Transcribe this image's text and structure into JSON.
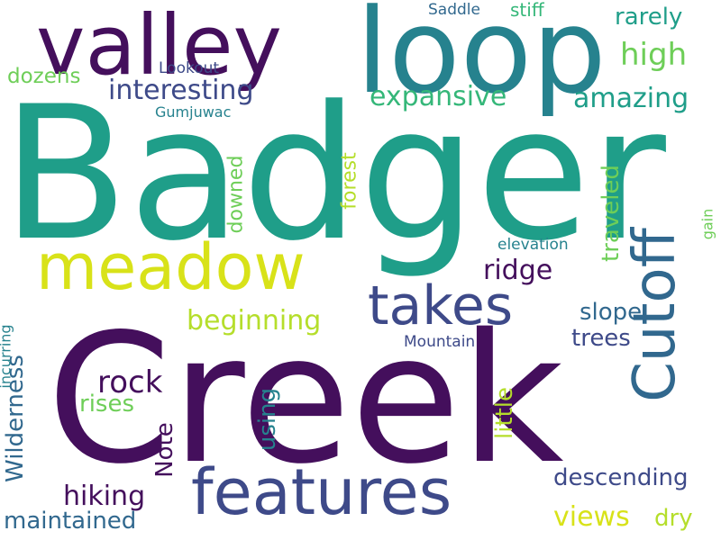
{
  "palette": {
    "dark_purple": "#440f5c",
    "indigo": "#3e4a89",
    "blue": "#31688e",
    "teal_blue": "#26828e",
    "teal": "#1f9e89",
    "green": "#35b779",
    "light_green": "#6ece58",
    "yellow_green": "#b5de2b",
    "yellow": "#d8e219"
  },
  "words": [
    {
      "text": "Badger",
      "color": "#1f9e89"
    },
    {
      "text": "Creek",
      "color": "#440f5c"
    },
    {
      "text": "loop",
      "color": "#26828e"
    },
    {
      "text": "valley",
      "color": "#440f5c"
    },
    {
      "text": "meadow",
      "color": "#d8e219"
    },
    {
      "text": "features",
      "color": "#3e4a89"
    },
    {
      "text": "Cutoff",
      "color": "#31688e"
    },
    {
      "text": "takes",
      "color": "#3e4a89"
    },
    {
      "text": "interesting",
      "color": "#3e4a89"
    },
    {
      "text": "expansive",
      "color": "#35b779"
    },
    {
      "text": "amazing",
      "color": "#1f9e89"
    },
    {
      "text": "high",
      "color": "#6ece58"
    },
    {
      "text": "rarely",
      "color": "#1f9e89"
    },
    {
      "text": "Saddle",
      "color": "#31688e"
    },
    {
      "text": "stiff",
      "color": "#35b779"
    },
    {
      "text": "dozens",
      "color": "#6ece58"
    },
    {
      "text": "Lookout",
      "color": "#3e4a89"
    },
    {
      "text": "Gumjuwac",
      "color": "#26828e"
    },
    {
      "text": "forest",
      "color": "#b5de2b"
    },
    {
      "text": "downed",
      "color": "#6ece58"
    },
    {
      "text": "traveled",
      "color": "#6ece58"
    },
    {
      "text": "gain",
      "color": "#6ece58"
    },
    {
      "text": "elevation",
      "color": "#26828e"
    },
    {
      "text": "ridge",
      "color": "#440f5c"
    },
    {
      "text": "beginning",
      "color": "#b5de2b"
    },
    {
      "text": "slope",
      "color": "#31688e"
    },
    {
      "text": "Mountain",
      "color": "#3e4a89"
    },
    {
      "text": "trees",
      "color": "#3e4a89"
    },
    {
      "text": "rock",
      "color": "#440f5c"
    },
    {
      "text": "rises",
      "color": "#6ece58"
    },
    {
      "text": "Wilderness",
      "color": "#31688e"
    },
    {
      "text": "incurring",
      "color": "#26828e"
    },
    {
      "text": "Note",
      "color": "#440f5c"
    },
    {
      "text": "using",
      "color": "#26828e"
    },
    {
      "text": "little",
      "color": "#b5de2b"
    },
    {
      "text": "hiking",
      "color": "#440f5c"
    },
    {
      "text": "descending",
      "color": "#3e4a89"
    },
    {
      "text": "views",
      "color": "#d8e219"
    },
    {
      "text": "dry",
      "color": "#b5de2b"
    },
    {
      "text": "maintained",
      "color": "#31688e"
    }
  ]
}
